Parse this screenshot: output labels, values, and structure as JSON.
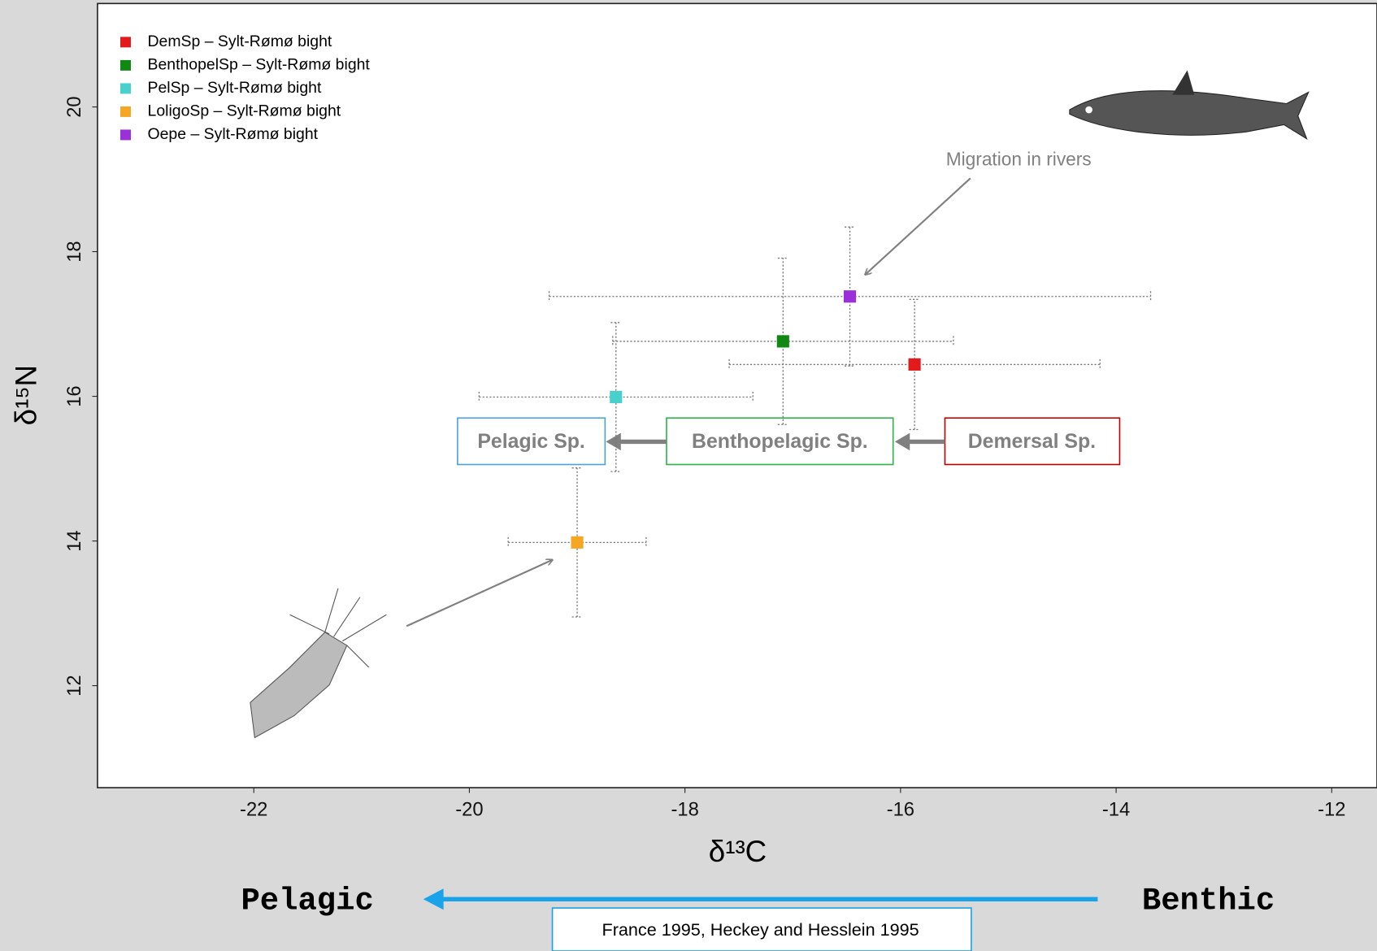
{
  "chart_data": {
    "type": "scatter",
    "x_label": "δ¹³C",
    "y_label": "δ¹⁵N",
    "xlim": [
      -23.45,
      -11.58
    ],
    "ylim": [
      10.59,
      21.43
    ],
    "xticks": [
      -22,
      -20,
      -18,
      -16,
      -14,
      -12
    ],
    "yticks": [
      12,
      14,
      16,
      18,
      20
    ],
    "grid": false,
    "legend": "upper left",
    "series": [
      {
        "name": "DemSp – Sylt-Rømø bight",
        "color": "#e31a1c",
        "x": [
          -15.87
        ],
        "y": [
          16.44
        ],
        "xerr": [
          1.72
        ],
        "yerr": [
          0.9
        ]
      },
      {
        "name": "BenthopelSp – Sylt-Rømø bight",
        "color": "#118811",
        "x": [
          -17.09
        ],
        "y": [
          16.76
        ],
        "xerr": [
          1.58
        ],
        "yerr": [
          1.15
        ]
      },
      {
        "name": "PelSp – Sylt-Rømø bight",
        "color": "#48d1cc",
        "x": [
          -18.64
        ],
        "y": [
          15.99
        ],
        "xerr": [
          1.27
        ],
        "yerr": [
          1.03
        ]
      },
      {
        "name": "LoligoSp – Sylt-Rømø bight",
        "color": "#f5a623",
        "x": [
          -19.0
        ],
        "y": [
          13.98
        ],
        "xerr": [
          0.64
        ],
        "yerr": [
          1.03
        ]
      },
      {
        "name": "Oepe – Sylt-Rømø bight",
        "color": "#9b30d9",
        "x": [
          -16.47
        ],
        "y": [
          17.38
        ],
        "xerr": [
          2.79
        ],
        "yerr": [
          0.96
        ]
      }
    ],
    "annotations": {
      "migration": "Migration in rivers",
      "pelagic_box": "Pelagic Sp.",
      "benthopelagic_box": "Benthopelagic Sp.",
      "demersal_box": "Demersal Sp.",
      "pelagic": "Pelagic",
      "benthic": "Benthic",
      "reference": "France 1995, Heckey and Hesslein 1995"
    }
  }
}
